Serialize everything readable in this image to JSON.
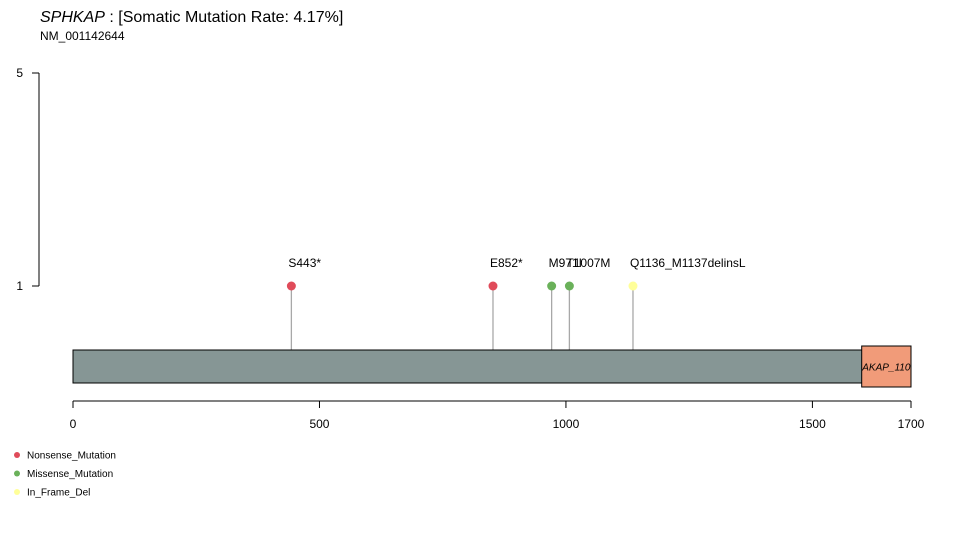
{
  "title": {
    "gene": "SPHKAP",
    "rate_text": " : [Somatic Mutation Rate: 4.17%]",
    "transcript": "NM_001142644"
  },
  "chart_data": {
    "type": "lollipop",
    "protein_length": 1700,
    "x_ticks": [
      0,
      500,
      1000,
      1500,
      1700
    ],
    "y_ticks": [
      1,
      5
    ],
    "protein_color": "#869695",
    "domains": [
      {
        "name": "AKAP_110",
        "start": 1600,
        "end": 1700,
        "color": "#f19b79"
      }
    ],
    "mutations": [
      {
        "label": "S443*",
        "position": 443,
        "count": 1,
        "type": "Nonsense_Mutation"
      },
      {
        "label": "E852*",
        "position": 852,
        "count": 1,
        "type": "Nonsense_Mutation"
      },
      {
        "label": "M971I",
        "position": 971,
        "count": 1,
        "type": "Missense_Mutation"
      },
      {
        "label": "T1007M",
        "position": 1007,
        "count": 1,
        "type": "Missense_Mutation"
      },
      {
        "label": "Q1136_M1137delinsL",
        "position": 1136,
        "count": 1,
        "type": "In_Frame_Del"
      }
    ],
    "legend": [
      {
        "name": "Nonsense_Mutation",
        "color": "#e04b5a"
      },
      {
        "name": "Missense_Mutation",
        "color": "#6ab15a"
      },
      {
        "name": "In_Frame_Del",
        "color": "#ffff99"
      }
    ]
  }
}
